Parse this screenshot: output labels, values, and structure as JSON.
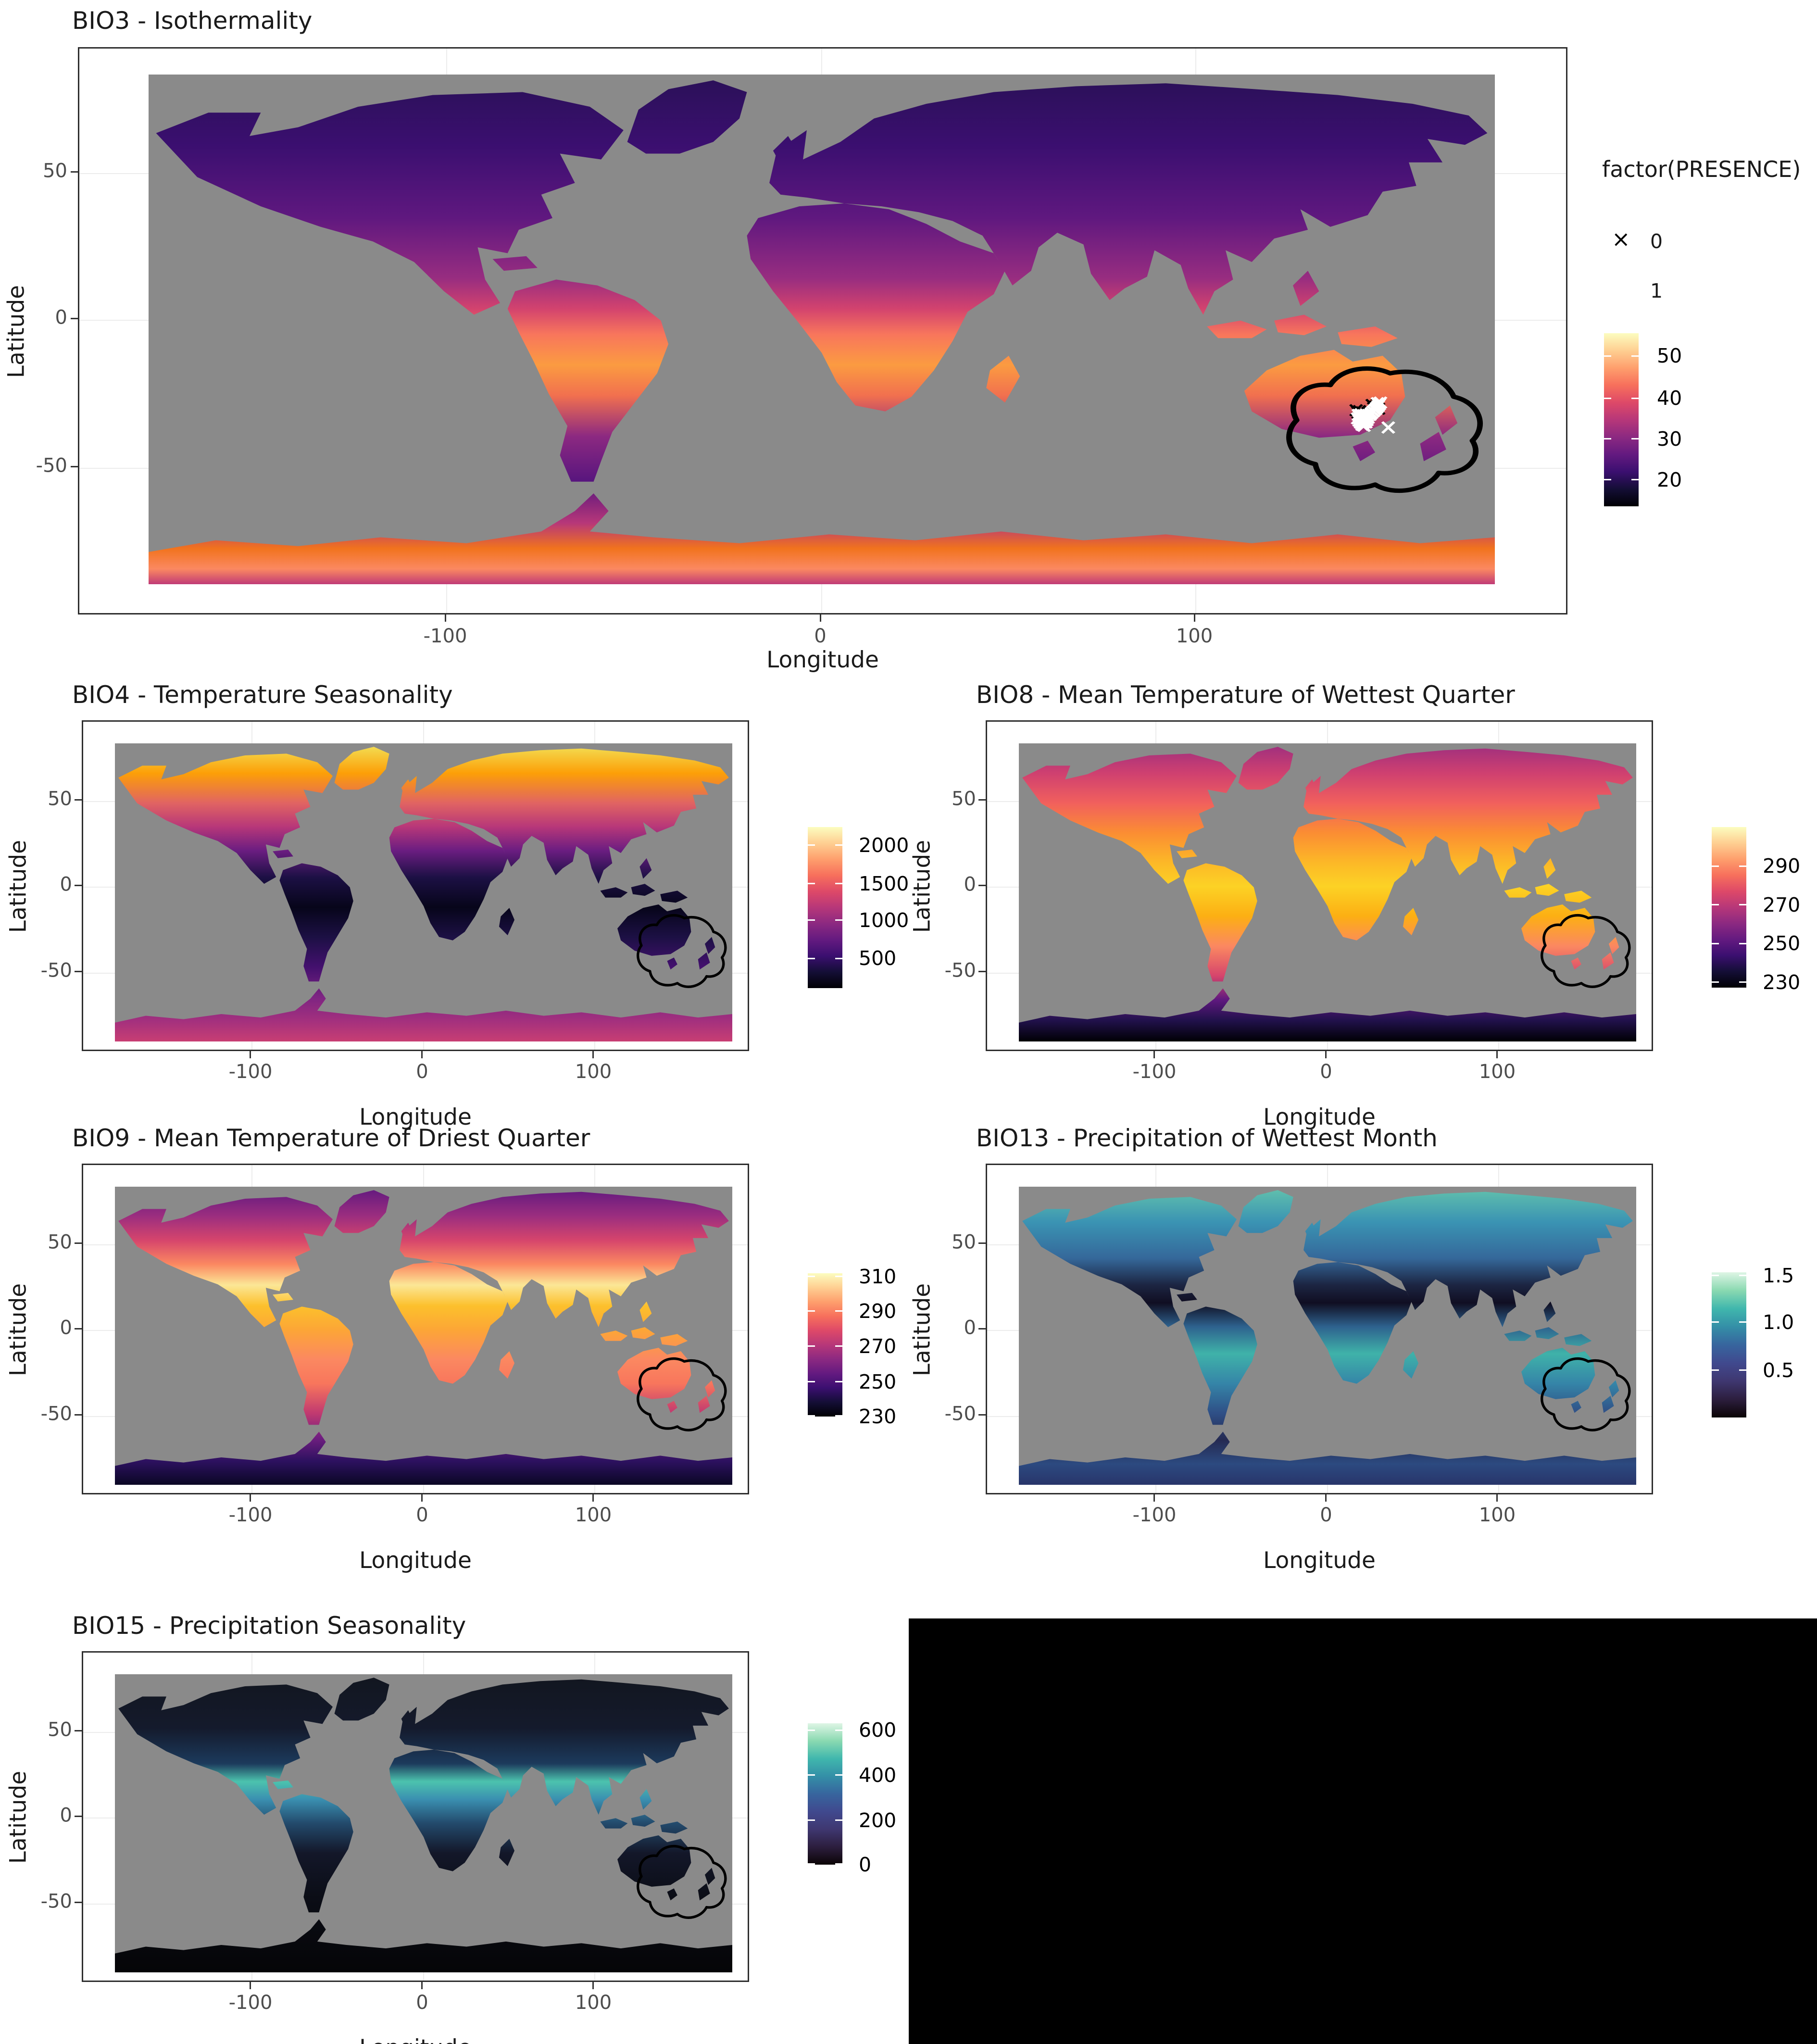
{
  "figure": {
    "background": "#ffffff",
    "ocean_na_color": "#8a8a8a",
    "panel_border_color": "#2e2e2e",
    "gridline_color": "#ececec",
    "tick_label_color": "#4d4d4d",
    "text_color": "#1a1a1a",
    "empty_cell_color": "#000000"
  },
  "panels": {
    "bio3": {
      "title": "BIO3 - Isothermality",
      "xlabel": "Longitude",
      "ylabel": "Latitude",
      "x_ticks": [
        "-100",
        "0",
        "100"
      ],
      "y_ticks": [
        "50",
        "0",
        "-50"
      ],
      "palette": "magma",
      "colorbar_ticks": [
        "50",
        "40",
        "30",
        "20"
      ],
      "legend": {
        "title": "factor(PRESENCE)",
        "items": [
          {
            "marker": "×",
            "marker_color": "#000000",
            "label": "0"
          },
          {
            "marker": "×",
            "marker_color": "#ffffff",
            "label": "1"
          }
        ]
      },
      "map_gradient": [
        [
          0,
          "#2a1057"
        ],
        [
          14,
          "#3b0f70"
        ],
        [
          28,
          "#5f187f"
        ],
        [
          40,
          "#982d80"
        ],
        [
          46,
          "#d3436e"
        ],
        [
          51,
          "#f8765c"
        ],
        [
          57,
          "#fb9b41"
        ],
        [
          63,
          "#f1704f"
        ],
        [
          71,
          "#8c2981"
        ],
        [
          80,
          "#57157e"
        ],
        [
          88,
          "#b73779"
        ],
        [
          93,
          "#f1731d"
        ],
        [
          97,
          "#fb8861"
        ],
        [
          100,
          "#c03a76"
        ]
      ]
    },
    "bio4": {
      "title": "BIO4 - Temperature Seasonality",
      "xlabel": "Longitude",
      "ylabel": "Latitude",
      "x_ticks": [
        "-100",
        "0",
        "100"
      ],
      "y_ticks": [
        "50",
        "0",
        "-50"
      ],
      "palette": "magma",
      "colorbar_ticks": [
        "2000",
        "1500",
        "1000",
        "500"
      ],
      "map_gradient": [
        [
          0,
          "#f2e35a"
        ],
        [
          10,
          "#fc9f07"
        ],
        [
          20,
          "#e16462"
        ],
        [
          28,
          "#b73779"
        ],
        [
          36,
          "#6b1d81"
        ],
        [
          45,
          "#1c1044"
        ],
        [
          55,
          "#07051a"
        ],
        [
          65,
          "#1c1044"
        ],
        [
          75,
          "#43106e"
        ],
        [
          85,
          "#7d2482"
        ],
        [
          93,
          "#a3307e"
        ],
        [
          100,
          "#c83e73"
        ]
      ]
    },
    "bio8": {
      "title": "BIO8 - Mean Temperature of Wettest Quarter",
      "xlabel": "Longitude",
      "ylabel": "Latitude",
      "x_ticks": [
        "-100",
        "0",
        "100"
      ],
      "y_ticks": [
        "50",
        "0",
        "-50"
      ],
      "palette": "magma",
      "colorbar_ticks": [
        "290",
        "270",
        "250",
        "230"
      ],
      "map_gradient": [
        [
          0,
          "#9c2e7f"
        ],
        [
          10,
          "#cf4070"
        ],
        [
          20,
          "#f1605d"
        ],
        [
          30,
          "#fb8d33"
        ],
        [
          40,
          "#fcb827"
        ],
        [
          48,
          "#fcd225"
        ],
        [
          58,
          "#fcaf13"
        ],
        [
          68,
          "#fb8861"
        ],
        [
          78,
          "#d6456c"
        ],
        [
          86,
          "#5f187f"
        ],
        [
          93,
          "#21114b"
        ],
        [
          100,
          "#000004"
        ]
      ]
    },
    "bio9": {
      "title": "BIO9 - Mean Temperature of Driest Quarter",
      "xlabel": "Longitude",
      "ylabel": "Latitude",
      "x_ticks": [
        "-100",
        "0",
        "100"
      ],
      "y_ticks": [
        "50",
        "0",
        "-50"
      ],
      "palette": "magma",
      "colorbar_ticks": [
        "310",
        "290",
        "270",
        "250",
        "230"
      ],
      "map_gradient": [
        [
          0,
          "#5f187f"
        ],
        [
          10,
          "#9c2e7f"
        ],
        [
          18,
          "#d6456c"
        ],
        [
          26,
          "#fb8861"
        ],
        [
          33,
          "#fbe796"
        ],
        [
          40,
          "#fcc02c"
        ],
        [
          48,
          "#fca636"
        ],
        [
          58,
          "#fb8861"
        ],
        [
          66,
          "#f8765c"
        ],
        [
          76,
          "#c13a70"
        ],
        [
          84,
          "#721f81"
        ],
        [
          92,
          "#2d1160"
        ],
        [
          100,
          "#0a0724"
        ]
      ]
    },
    "bio13": {
      "title": "BIO13 - Precipitation of Wettest Month",
      "xlabel": "Longitude",
      "ylabel": "Latitude",
      "x_ticks": [
        "-100",
        "0",
        "100"
      ],
      "y_ticks": [
        "50",
        "0",
        "-50"
      ],
      "palette": "mako",
      "colorbar_ticks": [
        "1.5",
        "1.0",
        "0.5"
      ],
      "map_gradient": [
        [
          0,
          "#63c3ac"
        ],
        [
          12,
          "#3a93b3"
        ],
        [
          24,
          "#35689a"
        ],
        [
          33,
          "#1c2542"
        ],
        [
          39,
          "#100e22"
        ],
        [
          47,
          "#2e628e"
        ],
        [
          56,
          "#3fb2a9"
        ],
        [
          66,
          "#3585a8"
        ],
        [
          76,
          "#2f4f86"
        ],
        [
          85,
          "#252a52"
        ],
        [
          93,
          "#2c4a80"
        ],
        [
          100,
          "#28356a"
        ]
      ]
    },
    "bio15": {
      "title": "BIO15 - Precipitation Seasonality",
      "xlabel": "Longitude",
      "ylabel": "Latitude",
      "x_ticks": [
        "-100",
        "0",
        "100"
      ],
      "y_ticks": [
        "50",
        "0",
        "-50"
      ],
      "palette": "mako",
      "colorbar_ticks": [
        "600",
        "400",
        "200",
        "0"
      ],
      "map_gradient": [
        [
          0,
          "#12161f"
        ],
        [
          18,
          "#141a2c"
        ],
        [
          30,
          "#1c3a5c"
        ],
        [
          36,
          "#4cc3ae"
        ],
        [
          42,
          "#3a8fb0"
        ],
        [
          50,
          "#234a6c"
        ],
        [
          60,
          "#131729"
        ],
        [
          75,
          "#0b0d16"
        ],
        [
          100,
          "#050507"
        ]
      ]
    }
  },
  "palettes": {
    "magma": [
      "#000004",
      "#140e36",
      "#3b0f70",
      "#641a80",
      "#8c2981",
      "#b73779",
      "#de4968",
      "#f7705c",
      "#fe9f6d",
      "#fecf92",
      "#fcfdbf"
    ],
    "mako": [
      "#0b0405",
      "#2c1e3e",
      "#3f3770",
      "#40498e",
      "#37659e",
      "#348fa7",
      "#40b7ad",
      "#8ad9b1",
      "#def5e5"
    ]
  },
  "chart_data": [
    {
      "id": "bio3",
      "type": "heatmap",
      "title": "BIO3 - Isothermality",
      "xlabel": "Longitude",
      "ylabel": "Latitude",
      "x_range": [
        -180,
        180
      ],
      "y_range": [
        -90,
        84
      ],
      "x_ticks": [
        -100,
        0,
        100
      ],
      "y_ticks": [
        50,
        0,
        -50
      ],
      "palette": "magma",
      "colorbar": {
        "tick_values": [
          50,
          40,
          30,
          20
        ],
        "approx_range": [
          14,
          55
        ]
      },
      "legend": {
        "title": "factor(PRESENCE)",
        "levels": [
          "0",
          "1"
        ]
      },
      "overlay": {
        "buffer": "lobed black outline enclosing southeastern Australia and the Tasman Sea",
        "absence_points_lonlat": [
          [
            147.2,
            -28.8
          ],
          [
            148.1,
            -29.3
          ],
          [
            147.6,
            -29.9
          ],
          [
            148.6,
            -28.6
          ],
          [
            142.9,
            -30.6
          ],
          [
            143.8,
            -30.9
          ],
          [
            144.5,
            -31.3
          ],
          [
            143.4,
            -31.4
          ],
          [
            146.3,
            -31.2
          ],
          [
            148.9,
            -30.1
          ]
        ],
        "presence_points_lonlat": [
          [
            143.5,
            -32.2
          ],
          [
            144.2,
            -32.0
          ],
          [
            144.9,
            -32.3
          ],
          [
            145.6,
            -32.1
          ],
          [
            143.8,
            -32.8
          ],
          [
            144.5,
            -32.7
          ],
          [
            145.2,
            -32.9
          ],
          [
            145.9,
            -32.6
          ],
          [
            143.3,
            -33.4
          ],
          [
            144.0,
            -33.5
          ],
          [
            144.7,
            -33.3
          ],
          [
            145.4,
            -33.6
          ],
          [
            146.1,
            -33.2
          ],
          [
            143.7,
            -34.2
          ],
          [
            144.4,
            -34.1
          ],
          [
            145.1,
            -34.4
          ],
          [
            145.8,
            -34.0
          ],
          [
            144.1,
            -34.9
          ],
          [
            144.8,
            -35.0
          ],
          [
            145.5,
            -34.8
          ],
          [
            144.5,
            -35.6
          ],
          [
            145.0,
            -35.9
          ],
          [
            146.6,
            -32.2
          ],
          [
            147.0,
            -31.6
          ],
          [
            147.5,
            -31.0
          ],
          [
            148.0,
            -30.4
          ],
          [
            148.4,
            -29.8
          ],
          [
            148.8,
            -29.2
          ],
          [
            149.1,
            -28.6
          ],
          [
            148.6,
            -28.2
          ],
          [
            149.4,
            -28.0
          ],
          [
            151.5,
            -36.5
          ]
        ]
      },
      "description": "Global raster: dark purple (low isothermality) across high northern latitudes, orange-yellow (high) in the tropics and along coastal Antarctica; oceans grey (NA)."
    },
    {
      "id": "bio4",
      "type": "heatmap",
      "title": "BIO4 - Temperature Seasonality",
      "xlabel": "Longitude",
      "ylabel": "Latitude",
      "x_range": [
        -180,
        180
      ],
      "y_range": [
        -90,
        84
      ],
      "x_ticks": [
        -100,
        0,
        100
      ],
      "y_ticks": [
        50,
        0,
        -50
      ],
      "palette": "magma",
      "colorbar": {
        "tick_values": [
          2000,
          1500,
          1000,
          500
        ],
        "approx_range": [
          60,
          2250
        ]
      },
      "description": "Highest seasonality (yellow-orange) in NE Siberia and northern Canada, near-zero (black) across the tropics, purple over southern continents and Antarctica; black buffer outline around SE Australia."
    },
    {
      "id": "bio8",
      "type": "heatmap",
      "title": "BIO8 - Mean Temperature of Wettest Quarter",
      "xlabel": "Longitude",
      "ylabel": "Latitude",
      "x_range": [
        -180,
        180
      ],
      "y_range": [
        -90,
        84
      ],
      "x_ticks": [
        -100,
        0,
        100
      ],
      "y_ticks": [
        50,
        0,
        -50
      ],
      "palette": "magma",
      "colorbar": {
        "tick_values": [
          290,
          270,
          250,
          230
        ],
        "approx_range": [
          228,
          302
        ]
      },
      "description": "Bright yellow (warm, ~295-300 K) tropics and subtropics, reddish mid-latitudes, dark purple-black Greenland and Antarctica; black buffer outline around SE Australia."
    },
    {
      "id": "bio9",
      "type": "heatmap",
      "title": "BIO9 - Mean Temperature of Driest Quarter",
      "xlabel": "Longitude",
      "ylabel": "Latitude",
      "x_range": [
        -180,
        180
      ],
      "y_range": [
        -90,
        84
      ],
      "x_ticks": [
        -100,
        0,
        100
      ],
      "y_ticks": [
        50,
        0,
        -50
      ],
      "palette": "magma",
      "colorbar": {
        "tick_values": [
          310,
          290,
          270,
          250,
          230
        ],
        "approx_range": [
          230,
          312
        ]
      },
      "description": "Pale yellow Sahara/Arabia (~305-310 K), orange tropics and Australia, patchy purple/orange high northern latitudes, dark purple-black Antarctica; black buffer outline around SE Australia."
    },
    {
      "id": "bio13",
      "type": "heatmap",
      "title": "BIO13 - Precipitation of Wettest Month",
      "xlabel": "Longitude",
      "ylabel": "Latitude",
      "x_range": [
        -180,
        180
      ],
      "y_range": [
        -90,
        84
      ],
      "x_ticks": [
        -100,
        0,
        100
      ],
      "y_ticks": [
        50,
        0,
        -50
      ],
      "palette": "mako",
      "colorbar": {
        "tick_values": [
          1.5,
          1.0,
          0.5
        ],
        "approx_range": [
          0,
          1.6
        ]
      },
      "description": "Teal-blue land, near-black Sahara and Central Asia (driest), pale mint patches in high-latitude North America/Eurasia and wet tropics; navy Antarctica; black buffer outline around SE Australia."
    },
    {
      "id": "bio15",
      "type": "heatmap",
      "title": "BIO15 - Precipitation Seasonality",
      "xlabel": "Longitude",
      "ylabel": "Latitude",
      "x_range": [
        -180,
        180
      ],
      "y_range": [
        -90,
        84
      ],
      "x_ticks": [
        -100,
        0,
        100
      ],
      "y_ticks": [
        50,
        0,
        -50
      ],
      "palette": "mako",
      "colorbar": {
        "tick_values": [
          600,
          400,
          200,
          0
        ],
        "approx_range": [
          0,
          650
        ]
      },
      "description": "Mostly near-black (low seasonality) land with a bright teal band across the Sahara/Sahel and Arabia, bluish India and western South America; black Antarctica; black buffer outline around SE Australia."
    }
  ]
}
